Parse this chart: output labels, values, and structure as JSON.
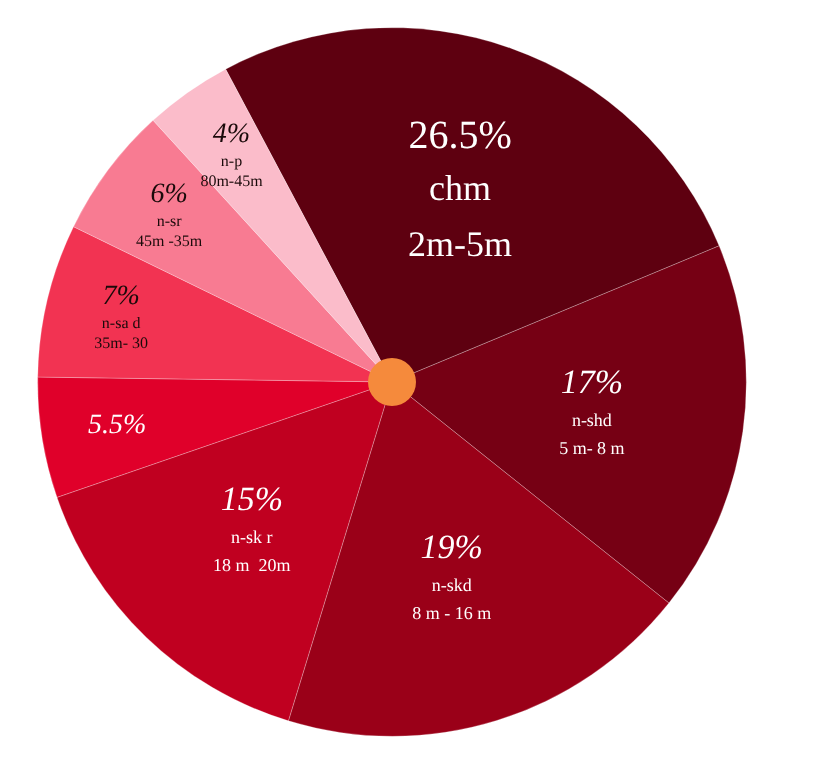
{
  "chart_data": {
    "type": "pie",
    "categories": [
      "chm\n2m-5m",
      "n-shd\n5 m- 8 m",
      "n-skd\n8 m - 16 m",
      "n-sk r\n18 m  20m",
      null,
      "n-sa d\n35m- 30",
      "n-sr\n45m -35m",
      "n-p\n80m-45m"
    ],
    "values": [
      26.5,
      17,
      19,
      15,
      5.5,
      7,
      6,
      4
    ],
    "value_labels": [
      "26.5%",
      "17%",
      "19%",
      "15%",
      "5.5%",
      "7%",
      "6%",
      "4%"
    ],
    "colors": [
      "#5e0010",
      "#760014",
      "#9a0018",
      "#c00020",
      "#e0002a",
      "#f23352",
      "#f87b92",
      "#fbbcca"
    ],
    "legend": false
  }
}
